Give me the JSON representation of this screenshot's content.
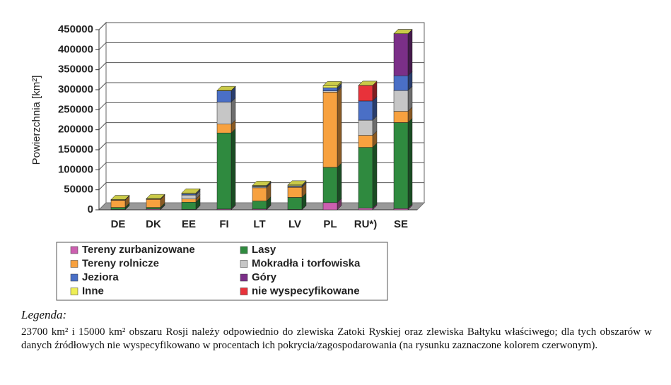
{
  "chart_data": {
    "type": "bar3d_stacked",
    "y_label": "Powierzchnia [km²]",
    "categories": [
      "DE",
      "DK",
      "EE",
      "FI",
      "LT",
      "LV",
      "PL",
      "RU*)",
      "SE"
    ],
    "series": [
      {
        "name": "Tereny zurbanizowane",
        "color": "#cc5fb0",
        "values": [
          1000,
          2000,
          1000,
          2000,
          2000,
          1000,
          18000,
          4000,
          3000
        ]
      },
      {
        "name": "Lasy",
        "color": "#2f8a3f",
        "values": [
          5000,
          4000,
          18000,
          190000,
          20000,
          30000,
          88000,
          152000,
          215000
        ]
      },
      {
        "name": "Tereny rolnicze",
        "color": "#f7a13f",
        "values": [
          18000,
          20000,
          8000,
          22000,
          33000,
          25000,
          188000,
          30000,
          28000
        ]
      },
      {
        "name": "Mokradła i torfowiska",
        "color": "#c6c6c6",
        "values": [
          500,
          500,
          10000,
          55000,
          2000,
          2000,
          3000,
          38000,
          52000
        ]
      },
      {
        "name": "Jeziora",
        "color": "#4a6fc6",
        "values": [
          500,
          500,
          3000,
          28000,
          2000,
          2000,
          8000,
          48000,
          37000
        ]
      },
      {
        "name": "Góry",
        "color": "#7b2f88",
        "values": [
          0,
          0,
          0,
          0,
          0,
          0,
          0,
          0,
          105000
        ]
      },
      {
        "name": "nie wyspecyfikowane",
        "color": "#e8323a",
        "values": [
          0,
          0,
          0,
          0,
          0,
          0,
          0,
          38700,
          0
        ]
      },
      {
        "name": "Inne",
        "color": "#eeee55",
        "values": [
          500,
          1000,
          2000,
          1000,
          2000,
          2000,
          5000,
          0,
          0
        ]
      }
    ],
    "ylim": [
      0,
      450000
    ],
    "yticks": [
      0,
      50000,
      100000,
      150000,
      200000,
      250000,
      300000,
      350000,
      400000,
      450000
    ],
    "grid": true
  },
  "caption": {
    "heading": "Legenda:",
    "text": "23700 km² i 15000 km² obszaru Rosji należy odpowiednio do zlewiska Zatoki Ryskiej oraz zlewiska Bałtyku właściwego; dla tych obszarów w danych źródłowych nie wyspecyfikowano w procentach ich pokrycia/zagospodarowania (na rysunku zaznaczone kolorem czerwonym)."
  }
}
